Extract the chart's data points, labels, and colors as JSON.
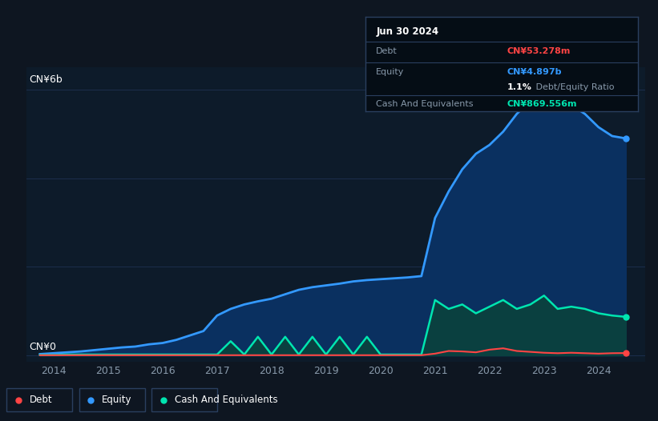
{
  "bg_color": "#0e1621",
  "plot_bg_color": "#0d1b2a",
  "grid_color": "#1e3050",
  "text_color": "#ffffff",
  "dim_text_color": "#8899aa",
  "ylabel_text": "CN¥6b",
  "ylabel0_text": "CN¥0",
  "xlim": [
    2013.5,
    2024.85
  ],
  "ylim": [
    -0.15,
    6.5
  ],
  "xticks": [
    2014,
    2015,
    2016,
    2017,
    2018,
    2019,
    2020,
    2021,
    2022,
    2023,
    2024
  ],
  "legend_labels": [
    "Debt",
    "Equity",
    "Cash And Equivalents"
  ],
  "legend_colors": [
    "#ff4444",
    "#3399ff",
    "#00e5b0"
  ],
  "debt_color": "#ff4444",
  "equity_color": "#3399ff",
  "equity_fill_color": "#0a3060",
  "cash_color": "#00e5b0",
  "cash_fill_color": "#0a4040",
  "tooltip_bg": "#050d15",
  "tooltip_border": "#2a3f5f",
  "tooltip_title": "Jun 30 2024",
  "tooltip_debt_label": "Debt",
  "tooltip_debt_value": "CN¥53.278m",
  "tooltip_debt_color": "#ff4444",
  "tooltip_equity_label": "Equity",
  "tooltip_equity_value": "CN¥4.897b",
  "tooltip_equity_color": "#3399ff",
  "tooltip_ratio_value": "1.1%",
  "tooltip_ratio_label": " Debt/Equity Ratio",
  "tooltip_cash_label": "Cash And Equivalents",
  "tooltip_cash_value": "CN¥869.556m",
  "tooltip_cash_color": "#00e5b0",
  "years": [
    2013.75,
    2014.0,
    2014.25,
    2014.5,
    2014.75,
    2015.0,
    2015.25,
    2015.5,
    2015.75,
    2016.0,
    2016.25,
    2016.5,
    2016.75,
    2017.0,
    2017.25,
    2017.5,
    2017.75,
    2018.0,
    2018.25,
    2018.5,
    2018.75,
    2019.0,
    2019.25,
    2019.5,
    2019.75,
    2020.0,
    2020.25,
    2020.5,
    2020.75,
    2021.0,
    2021.25,
    2021.5,
    2021.75,
    2022.0,
    2022.25,
    2022.5,
    2022.75,
    2023.0,
    2023.25,
    2023.5,
    2023.75,
    2024.0,
    2024.25,
    2024.5
  ],
  "equity": [
    0.03,
    0.05,
    0.07,
    0.09,
    0.12,
    0.15,
    0.18,
    0.2,
    0.25,
    0.28,
    0.35,
    0.45,
    0.55,
    0.9,
    1.05,
    1.15,
    1.22,
    1.28,
    1.38,
    1.48,
    1.54,
    1.58,
    1.62,
    1.67,
    1.7,
    1.72,
    1.74,
    1.76,
    1.79,
    3.1,
    3.7,
    4.2,
    4.55,
    4.75,
    5.05,
    5.45,
    5.75,
    5.95,
    5.75,
    5.65,
    5.45,
    5.15,
    4.95,
    4.897
  ],
  "cash": [
    0.01,
    0.01,
    0.02,
    0.02,
    0.02,
    0.02,
    0.02,
    0.02,
    0.02,
    0.02,
    0.02,
    0.02,
    0.02,
    0.02,
    0.32,
    0.02,
    0.42,
    0.02,
    0.42,
    0.02,
    0.42,
    0.02,
    0.42,
    0.02,
    0.42,
    0.02,
    0.02,
    0.02,
    0.02,
    1.25,
    1.05,
    1.15,
    0.95,
    1.1,
    1.25,
    1.05,
    1.15,
    1.35,
    1.05,
    1.1,
    1.05,
    0.95,
    0.9,
    0.87
  ],
  "debt": [
    0.005,
    0.005,
    0.005,
    0.005,
    0.005,
    0.005,
    0.005,
    0.005,
    0.005,
    0.005,
    0.005,
    0.005,
    0.005,
    0.005,
    0.005,
    0.005,
    0.005,
    0.005,
    0.005,
    0.005,
    0.005,
    0.005,
    0.005,
    0.005,
    0.005,
    0.005,
    0.005,
    0.005,
    0.005,
    0.04,
    0.1,
    0.09,
    0.07,
    0.13,
    0.16,
    0.1,
    0.08,
    0.06,
    0.05,
    0.06,
    0.05,
    0.04,
    0.05,
    0.053
  ]
}
